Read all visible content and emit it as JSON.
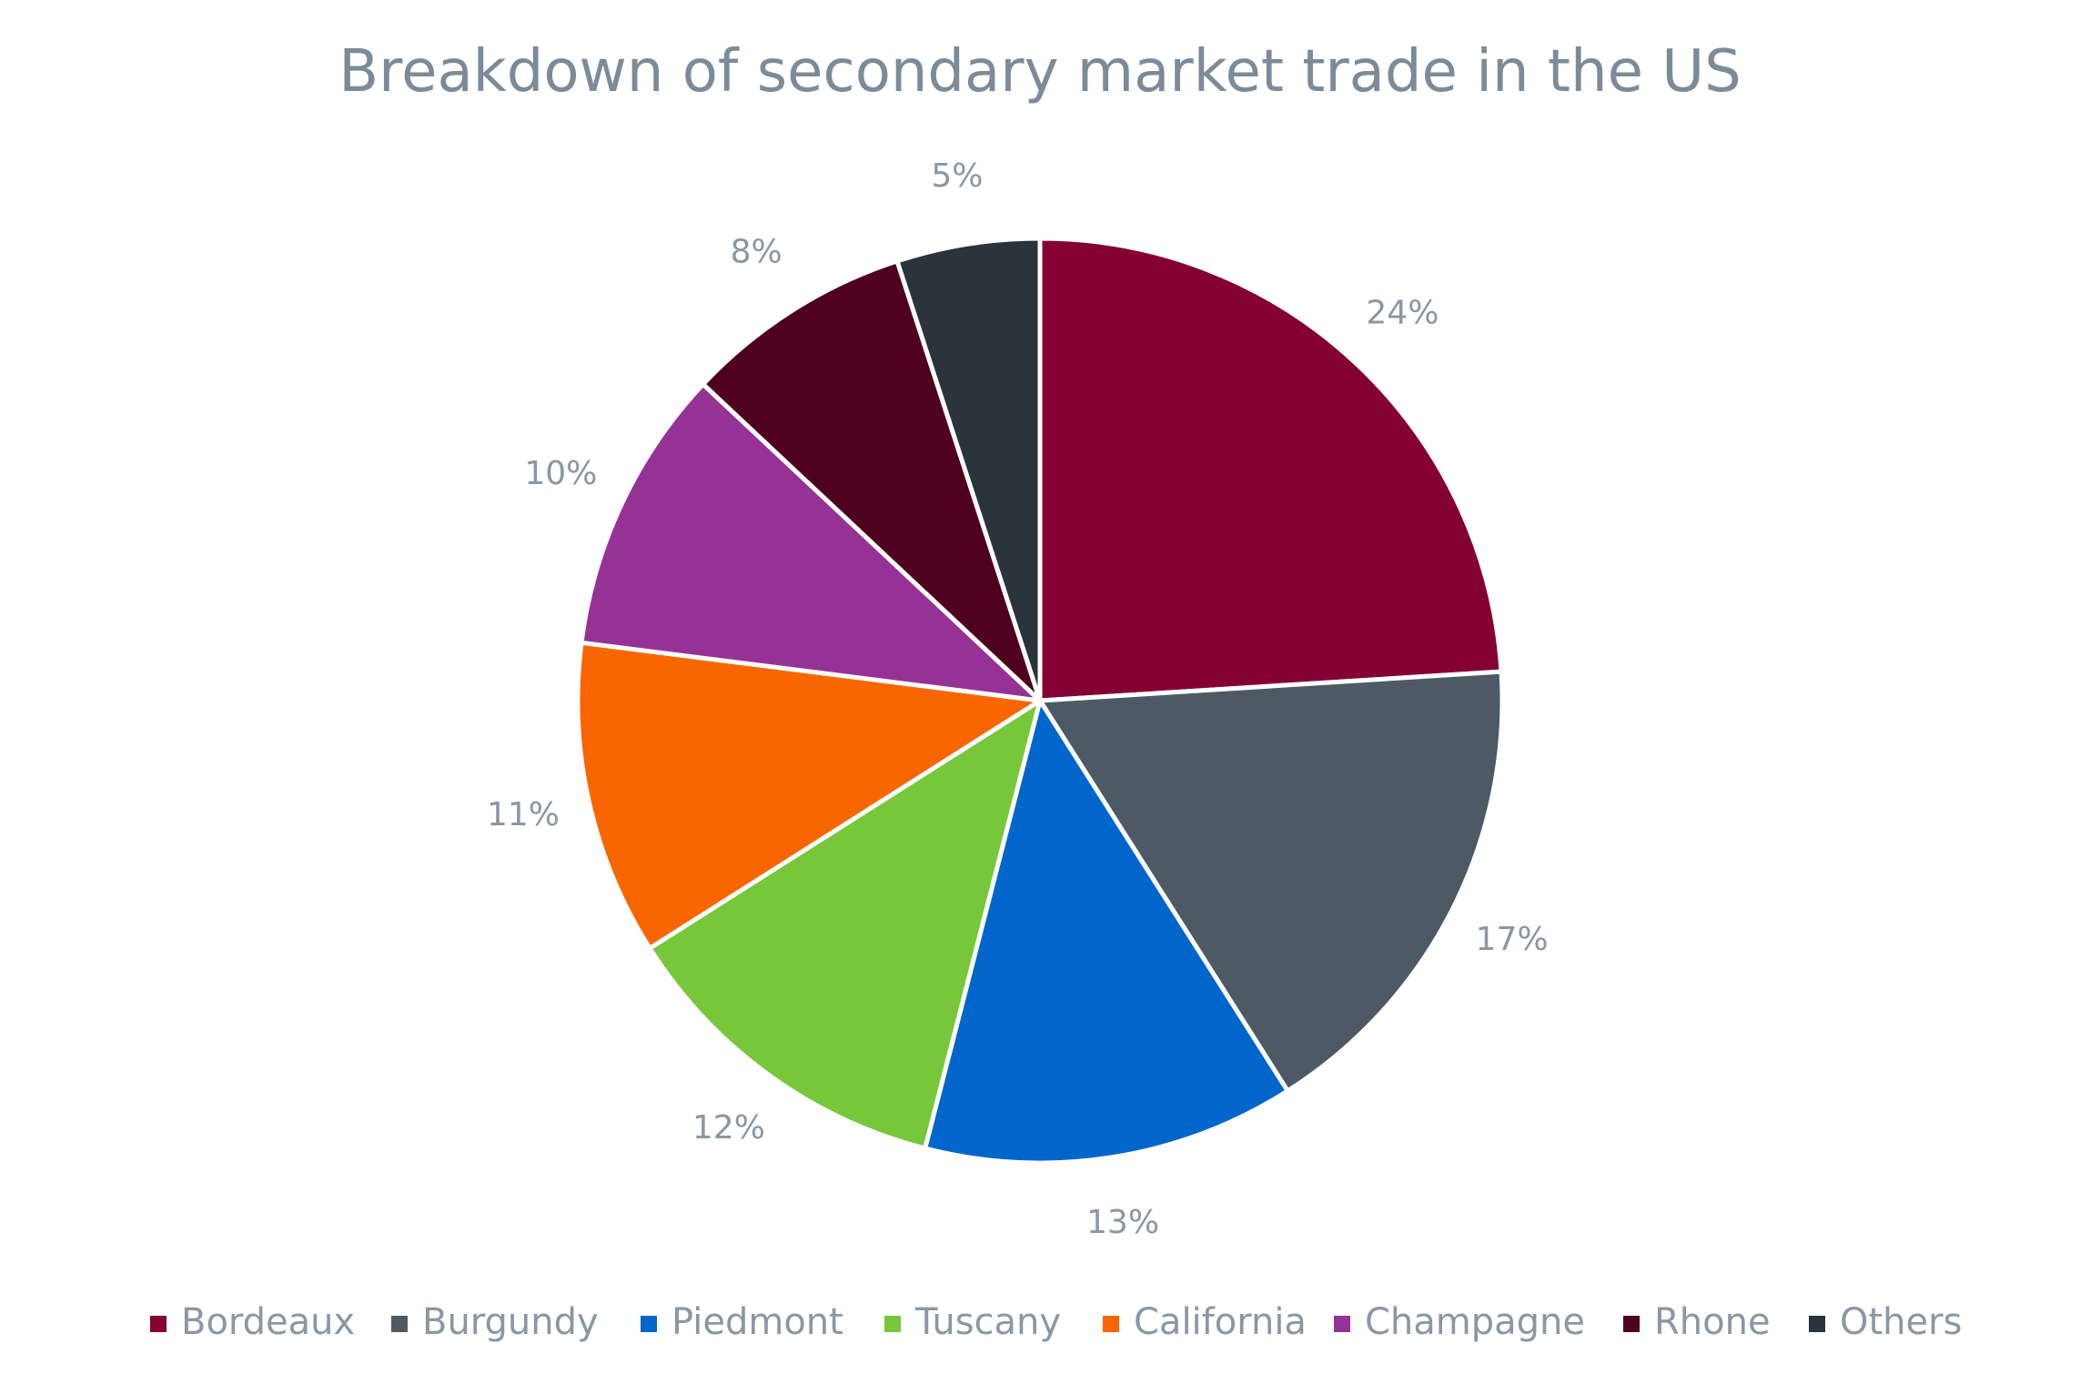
{
  "chart_data": {
    "type": "pie",
    "title": "Breakdown of secondary market trade in the US",
    "categories": [
      "Bordeaux",
      "Burgundy",
      "Piedmont",
      "Tuscany",
      "California",
      "Champagne",
      "Rhone",
      "Others"
    ],
    "values": [
      24,
      17,
      13,
      12,
      11,
      10,
      8,
      5
    ],
    "value_labels": [
      "24%",
      "17%",
      "13%",
      "12%",
      "11%",
      "10%",
      "8%",
      "5%"
    ],
    "colors": [
      "#850032",
      "#4d5a66",
      "#0066cc",
      "#77c73a",
      "#f96600",
      "#963296",
      "#4f001e",
      "#2b333b"
    ],
    "start": "12 o'clock",
    "direction": "clockwise",
    "legend_position": "bottom"
  }
}
